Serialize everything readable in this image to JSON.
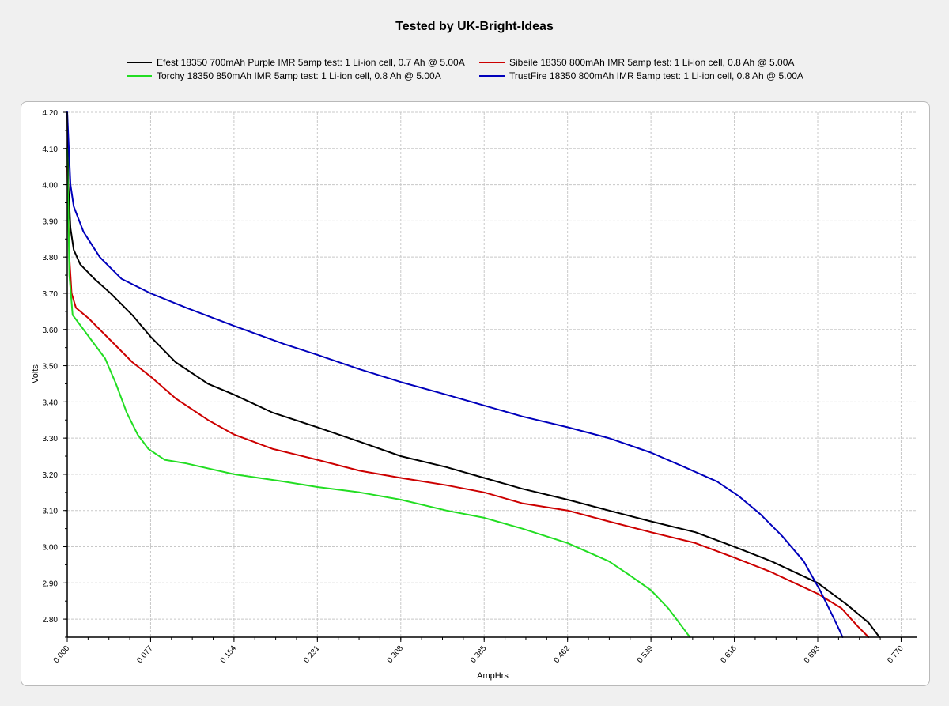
{
  "title": "Tested by UK-Bright-Ideas",
  "legend": [
    {
      "label": "Efest 18350 700mAh Purple IMR 5amp test: 1 Li-ion cell, 0.7 Ah @ 5.00A",
      "color": "#000000"
    },
    {
      "label": "Sibeile 18350 800mAh IMR 5amp test: 1 Li-ion cell, 0.8 Ah @ 5.00A",
      "color": "#cc0000"
    },
    {
      "label": "Torchy 18350 850mAh IMR 5amp test: 1 Li-ion cell, 0.8 Ah @ 5.00A",
      "color": "#22dd22"
    },
    {
      "label": "TrustFire 18350 800mAh IMR 5amp test: 1 Li-ion cell, 0.8 Ah @ 5.00A",
      "color": "#0000bb"
    }
  ],
  "chart_data": {
    "type": "line",
    "title": "Tested by UK-Bright-Ideas",
    "xlabel": "AmpHrs",
    "ylabel": "Volts",
    "xlim": [
      0,
      0.785
    ],
    "ylim": [
      2.75,
      4.2
    ],
    "x_ticks": [
      "0.000",
      "0.077",
      "0.154",
      "0.231",
      "0.308",
      "0.385",
      "0.462",
      "0.539",
      "0.616",
      "0.693",
      "0.770"
    ],
    "y_ticks": [
      "4.20",
      "4.10",
      "4.00",
      "3.90",
      "3.80",
      "3.70",
      "3.60",
      "3.50",
      "3.40",
      "3.30",
      "3.20",
      "3.10",
      "3.00",
      "2.90",
      "2.80"
    ],
    "grid": true,
    "legend_position": "top",
    "series": [
      {
        "name": "Efest 18350 700mAh Purple IMR 5amp test: 1 Li-ion cell, 0.7 Ah @ 5.00A",
        "color": "#000000",
        "points": [
          [
            0.0,
            4.2
          ],
          [
            0.001,
            4.0
          ],
          [
            0.003,
            3.88
          ],
          [
            0.006,
            3.82
          ],
          [
            0.012,
            3.78
          ],
          [
            0.025,
            3.74
          ],
          [
            0.04,
            3.7
          ],
          [
            0.06,
            3.64
          ],
          [
            0.077,
            3.58
          ],
          [
            0.1,
            3.51
          ],
          [
            0.13,
            3.45
          ],
          [
            0.154,
            3.42
          ],
          [
            0.19,
            3.37
          ],
          [
            0.231,
            3.33
          ],
          [
            0.27,
            3.29
          ],
          [
            0.308,
            3.25
          ],
          [
            0.35,
            3.22
          ],
          [
            0.385,
            3.19
          ],
          [
            0.42,
            3.16
          ],
          [
            0.462,
            3.13
          ],
          [
            0.5,
            3.1
          ],
          [
            0.539,
            3.07
          ],
          [
            0.58,
            3.04
          ],
          [
            0.616,
            3.0
          ],
          [
            0.65,
            2.96
          ],
          [
            0.693,
            2.9
          ],
          [
            0.72,
            2.84
          ],
          [
            0.74,
            2.79
          ],
          [
            0.75,
            2.75
          ]
        ]
      },
      {
        "name": "Sibeile 18350 800mAh IMR 5amp test: 1 Li-ion cell, 0.8 Ah @ 5.00A",
        "color": "#cc0000",
        "points": [
          [
            0.0,
            4.05
          ],
          [
            0.002,
            3.8
          ],
          [
            0.004,
            3.7
          ],
          [
            0.008,
            3.66
          ],
          [
            0.02,
            3.63
          ],
          [
            0.04,
            3.57
          ],
          [
            0.06,
            3.51
          ],
          [
            0.077,
            3.47
          ],
          [
            0.1,
            3.41
          ],
          [
            0.13,
            3.35
          ],
          [
            0.154,
            3.31
          ],
          [
            0.19,
            3.27
          ],
          [
            0.231,
            3.24
          ],
          [
            0.27,
            3.21
          ],
          [
            0.308,
            3.19
          ],
          [
            0.35,
            3.17
          ],
          [
            0.385,
            3.15
          ],
          [
            0.42,
            3.12
          ],
          [
            0.462,
            3.1
          ],
          [
            0.5,
            3.07
          ],
          [
            0.539,
            3.04
          ],
          [
            0.58,
            3.01
          ],
          [
            0.616,
            2.97
          ],
          [
            0.65,
            2.93
          ],
          [
            0.693,
            2.87
          ],
          [
            0.715,
            2.83
          ],
          [
            0.73,
            2.78
          ],
          [
            0.74,
            2.75
          ]
        ]
      },
      {
        "name": "Torchy 18350 850mAh IMR 5amp test: 1 Li-ion cell, 0.8 Ah @ 5.00A",
        "color": "#22dd22",
        "points": [
          [
            0.0,
            4.1
          ],
          [
            0.002,
            3.75
          ],
          [
            0.005,
            3.64
          ],
          [
            0.01,
            3.62
          ],
          [
            0.025,
            3.56
          ],
          [
            0.035,
            3.52
          ],
          [
            0.045,
            3.45
          ],
          [
            0.055,
            3.37
          ],
          [
            0.065,
            3.31
          ],
          [
            0.075,
            3.27
          ],
          [
            0.09,
            3.24
          ],
          [
            0.11,
            3.23
          ],
          [
            0.154,
            3.2
          ],
          [
            0.2,
            3.18
          ],
          [
            0.231,
            3.165
          ],
          [
            0.27,
            3.15
          ],
          [
            0.308,
            3.13
          ],
          [
            0.35,
            3.1
          ],
          [
            0.385,
            3.08
          ],
          [
            0.42,
            3.05
          ],
          [
            0.462,
            3.01
          ],
          [
            0.5,
            2.96
          ],
          [
            0.52,
            2.92
          ],
          [
            0.539,
            2.88
          ],
          [
            0.555,
            2.83
          ],
          [
            0.57,
            2.77
          ],
          [
            0.575,
            2.75
          ]
        ]
      },
      {
        "name": "TrustFire 18350 800mAh IMR 5amp test: 1 Li-ion cell, 0.8 Ah @ 5.00A",
        "color": "#0000bb",
        "points": [
          [
            0.0,
            4.2
          ],
          [
            0.003,
            4.0
          ],
          [
            0.006,
            3.94
          ],
          [
            0.015,
            3.87
          ],
          [
            0.03,
            3.8
          ],
          [
            0.05,
            3.74
          ],
          [
            0.077,
            3.7
          ],
          [
            0.11,
            3.66
          ],
          [
            0.154,
            3.61
          ],
          [
            0.2,
            3.56
          ],
          [
            0.231,
            3.53
          ],
          [
            0.27,
            3.49
          ],
          [
            0.308,
            3.455
          ],
          [
            0.35,
            3.42
          ],
          [
            0.385,
            3.39
          ],
          [
            0.42,
            3.36
          ],
          [
            0.462,
            3.33
          ],
          [
            0.5,
            3.3
          ],
          [
            0.539,
            3.26
          ],
          [
            0.57,
            3.22
          ],
          [
            0.6,
            3.18
          ],
          [
            0.62,
            3.14
          ],
          [
            0.64,
            3.09
          ],
          [
            0.66,
            3.03
          ],
          [
            0.68,
            2.96
          ],
          [
            0.695,
            2.88
          ],
          [
            0.705,
            2.82
          ],
          [
            0.713,
            2.77
          ],
          [
            0.716,
            2.75
          ]
        ]
      }
    ]
  }
}
